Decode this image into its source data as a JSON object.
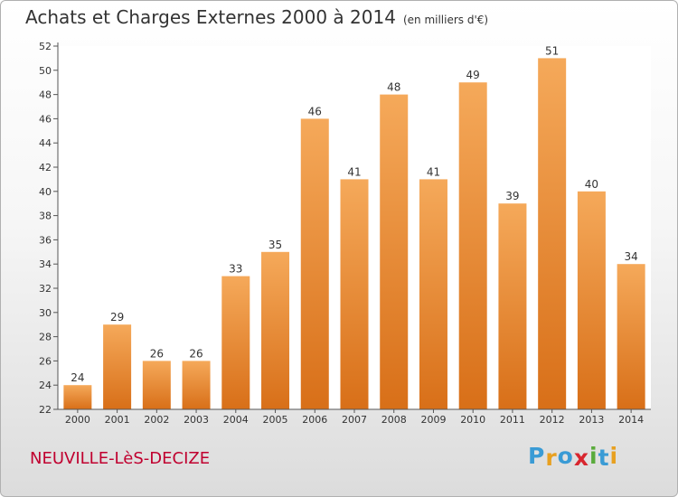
{
  "header": {
    "title": "Achats et Charges Externes 2000 à 2014",
    "subtitle": "(en milliers d'€)"
  },
  "footer": {
    "commune": "NEUVILLE-LèS-DECIZE",
    "brand": [
      "P",
      "r",
      "o",
      "x",
      "i",
      "t",
      "i"
    ],
    "brand_colors": [
      "#3a9bd5",
      "#e8a020",
      "#3a9bd5",
      "#d8262e",
      "#5aab3c",
      "#3a9bd5",
      "#e8a020"
    ]
  },
  "colors": {
    "bar_light": "#f5a95a",
    "bar_dark": "#d86f18",
    "axis": "#555555",
    "text": "#333333",
    "commune": "#c0002f"
  },
  "chart_data": {
    "type": "bar",
    "categories": [
      "2000",
      "2001",
      "2002",
      "2003",
      "2004",
      "2005",
      "2006",
      "2007",
      "2008",
      "2009",
      "2010",
      "2011",
      "2012",
      "2013",
      "2014"
    ],
    "values": [
      24,
      29,
      26,
      26,
      33,
      35,
      46,
      41,
      48,
      41,
      49,
      39,
      51,
      40,
      34
    ],
    "data_labels": [
      "24",
      "29",
      "26",
      "26",
      "33",
      "35",
      "46",
      "41",
      "48",
      "41",
      "49",
      "39",
      "51",
      "40",
      "34"
    ],
    "yticks": [
      "22",
      "24",
      "26",
      "28",
      "30",
      "32",
      "34",
      "36",
      "38",
      "40",
      "42",
      "44",
      "46",
      "48",
      "50",
      "52"
    ],
    "ylim": [
      22,
      52
    ],
    "grid": false,
    "legend": "none"
  }
}
